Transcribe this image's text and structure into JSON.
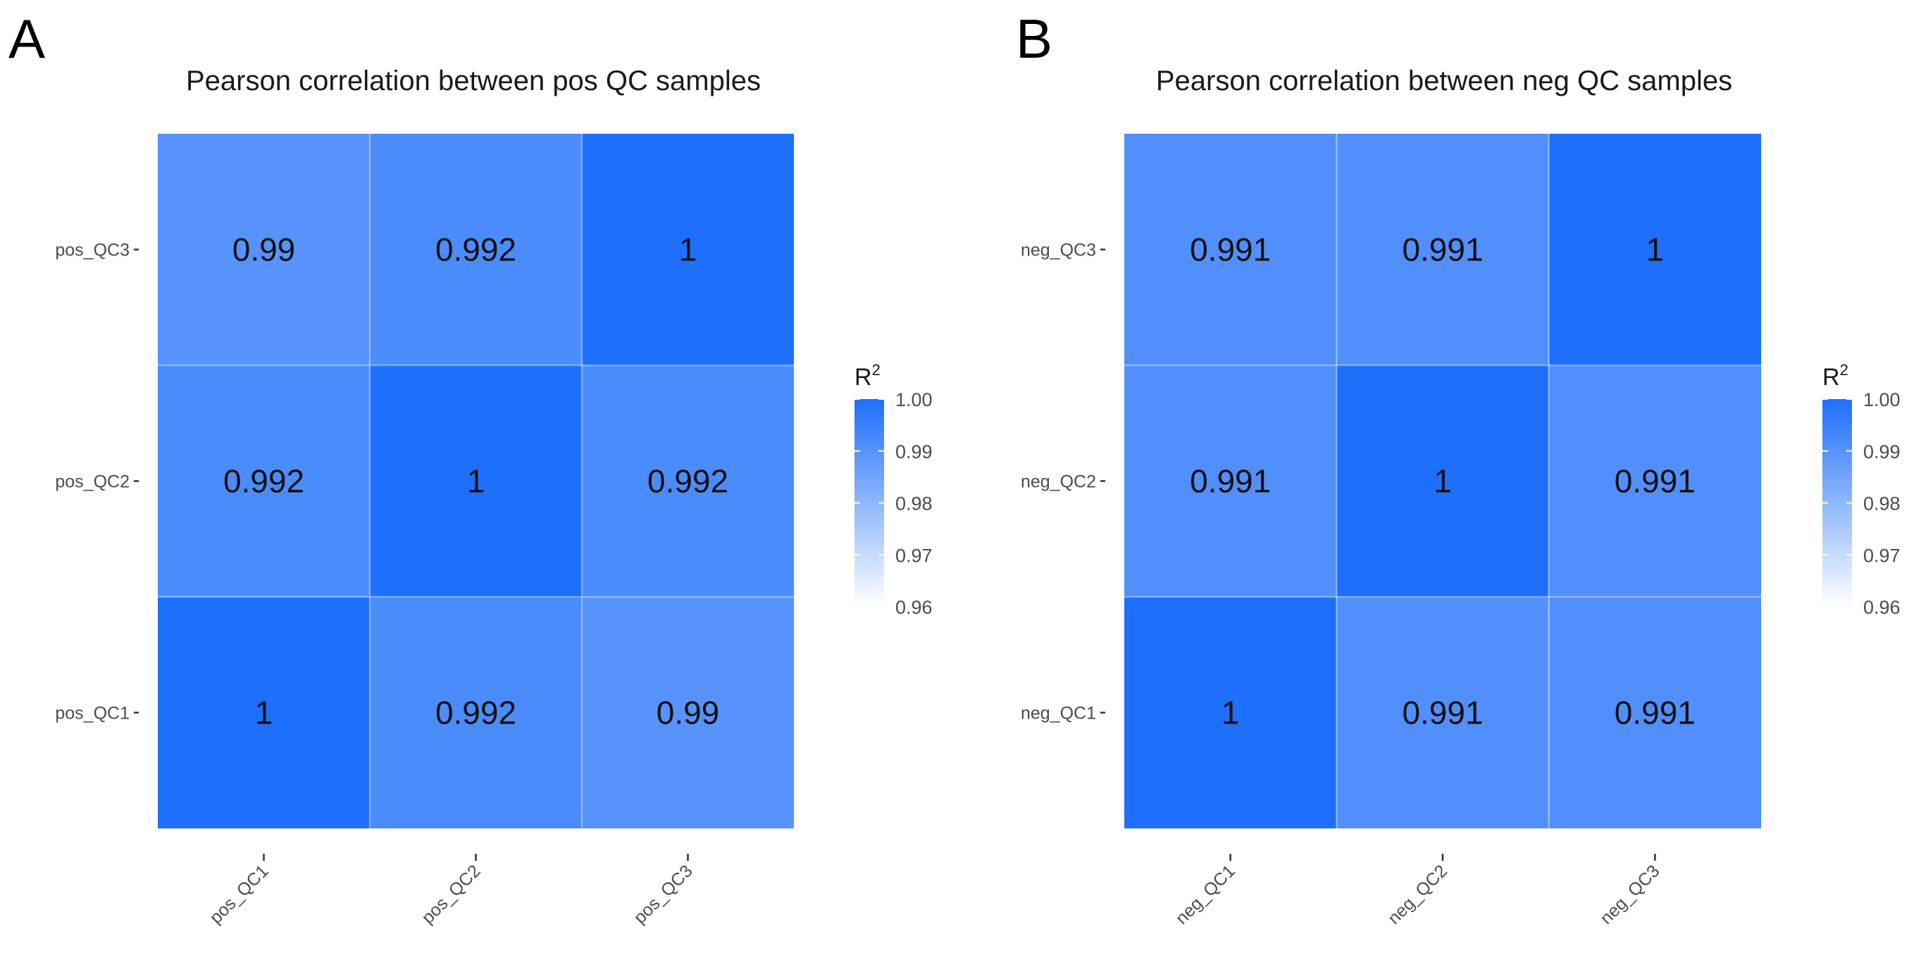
{
  "chart_data": [
    {
      "type": "heatmap",
      "panel_label": "A",
      "title": "Pearson correlation between pos QC samples",
      "x_categories": [
        "pos_QC1",
        "pos_QC2",
        "pos_QC3"
      ],
      "y_categories": [
        "pos_QC1",
        "pos_QC2",
        "pos_QC3"
      ],
      "cells": [
        {
          "x": "pos_QC1",
          "y": "pos_QC1",
          "value": 1,
          "label": "1"
        },
        {
          "x": "pos_QC2",
          "y": "pos_QC1",
          "value": 0.992,
          "label": "0.992"
        },
        {
          "x": "pos_QC3",
          "y": "pos_QC1",
          "value": 0.99,
          "label": "0.99"
        },
        {
          "x": "pos_QC1",
          "y": "pos_QC2",
          "value": 0.992,
          "label": "0.992"
        },
        {
          "x": "pos_QC2",
          "y": "pos_QC2",
          "value": 1,
          "label": "1"
        },
        {
          "x": "pos_QC3",
          "y": "pos_QC2",
          "value": 0.992,
          "label": "0.992"
        },
        {
          "x": "pos_QC1",
          "y": "pos_QC3",
          "value": 0.99,
          "label": "0.99"
        },
        {
          "x": "pos_QC2",
          "y": "pos_QC3",
          "value": 0.992,
          "label": "0.992"
        },
        {
          "x": "pos_QC3",
          "y": "pos_QC3",
          "value": 1,
          "label": "1"
        }
      ],
      "legend": {
        "title": "R",
        "title_superscript": "2",
        "range": [
          0.96,
          1.0
        ],
        "ticks": [
          1.0,
          0.99,
          0.98,
          0.97,
          0.96
        ],
        "tick_labels": [
          "1.00",
          "0.99",
          "0.98",
          "0.97",
          "0.96"
        ]
      }
    },
    {
      "type": "heatmap",
      "panel_label": "B",
      "title": "Pearson correlation between neg QC samples",
      "x_categories": [
        "neg_QC1",
        "neg_QC2",
        "neg_QC3"
      ],
      "y_categories": [
        "neg_QC1",
        "neg_QC2",
        "neg_QC3"
      ],
      "cells": [
        {
          "x": "neg_QC1",
          "y": "neg_QC1",
          "value": 1,
          "label": "1"
        },
        {
          "x": "neg_QC2",
          "y": "neg_QC1",
          "value": 0.991,
          "label": "0.991"
        },
        {
          "x": "neg_QC3",
          "y": "neg_QC1",
          "value": 0.991,
          "label": "0.991"
        },
        {
          "x": "neg_QC1",
          "y": "neg_QC2",
          "value": 0.991,
          "label": "0.991"
        },
        {
          "x": "neg_QC2",
          "y": "neg_QC2",
          "value": 1,
          "label": "1"
        },
        {
          "x": "neg_QC3",
          "y": "neg_QC2",
          "value": 0.991,
          "label": "0.991"
        },
        {
          "x": "neg_QC1",
          "y": "neg_QC3",
          "value": 0.991,
          "label": "0.991"
        },
        {
          "x": "neg_QC2",
          "y": "neg_QC3",
          "value": 0.991,
          "label": "0.991"
        },
        {
          "x": "neg_QC3",
          "y": "neg_QC3",
          "value": 1,
          "label": "1"
        }
      ],
      "legend": {
        "title": "R",
        "title_superscript": "2",
        "range": [
          0.96,
          1.0
        ],
        "ticks": [
          1.0,
          0.99,
          0.98,
          0.97,
          0.96
        ],
        "tick_labels": [
          "1.00",
          "0.99",
          "0.98",
          "0.97",
          "0.96"
        ]
      }
    }
  ],
  "colors": {
    "low": "#ffffff",
    "high": "#1e6ffb",
    "background": "#ffffff"
  }
}
